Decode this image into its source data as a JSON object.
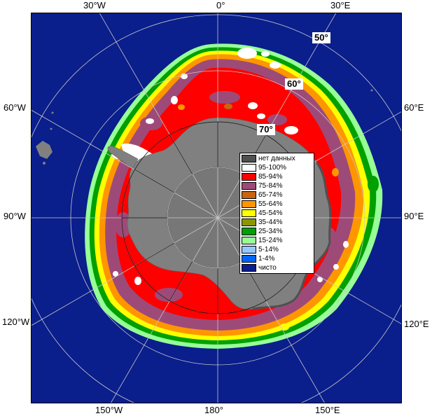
{
  "map": {
    "ocean_color": "#0a1e8c",
    "land_color": "#808080",
    "pole_cap_color": "#777777",
    "grid_color": "#c8c8c8"
  },
  "edge_labels": {
    "top_30w": "30°W",
    "top_0": "0°",
    "top_30e": "30°E",
    "left_60w": "60°W",
    "left_90w": "90°W",
    "left_120w": "120°W",
    "right_60e": "60°E",
    "right_90e": "90°E",
    "right_120e": "120°E",
    "bottom_150w": "150°W",
    "bottom_180": "180°",
    "bottom_150e": "150°E"
  },
  "lat_labels": {
    "lat50": "50°",
    "lat60": "60°",
    "lat70": "70°"
  },
  "legend": {
    "items": [
      {
        "label": "нет данных",
        "color": "#505050"
      },
      {
        "label": "95-100%",
        "color": "#ffffff"
      },
      {
        "label": "85-94%",
        "color": "#ff0000"
      },
      {
        "label": "75-84%",
        "color": "#9e4a78"
      },
      {
        "label": "65-74%",
        "color": "#c86414"
      },
      {
        "label": "55-64%",
        "color": "#ff9600"
      },
      {
        "label": "45-54%",
        "color": "#ffff00"
      },
      {
        "label": "35-44%",
        "color": "#8c9600"
      },
      {
        "label": "25-34%",
        "color": "#00a000"
      },
      {
        "label": "15-24%",
        "color": "#96ff96"
      },
      {
        "label": "5-14%",
        "color": "#96c8ff"
      },
      {
        "label": "1-4%",
        "color": "#0064ff"
      },
      {
        "label": "чисто",
        "color": "#0a1e8c"
      }
    ]
  }
}
